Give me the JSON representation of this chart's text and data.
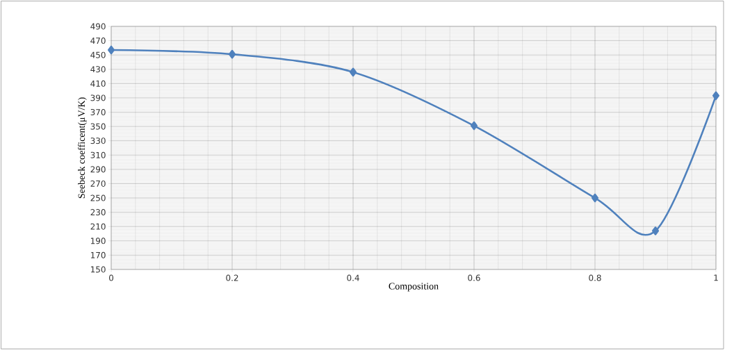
{
  "chart_data": {
    "type": "line",
    "xlabel": "Composition",
    "ylabel": "Seebeck coefficent(μV/K)",
    "x": [
      0,
      0.2,
      0.4,
      0.6,
      0.8,
      0.9,
      1
    ],
    "series": [
      {
        "color": "#4f81bd",
        "values": [
          457,
          451,
          426,
          351,
          250,
          204,
          393
        ]
      }
    ],
    "xlim": [
      0,
      1
    ],
    "xticks": [
      0,
      0.2,
      0.4,
      0.6,
      0.8,
      1
    ],
    "ylim": [
      150,
      490
    ],
    "yticks": [
      150,
      170,
      190,
      210,
      230,
      250,
      270,
      290,
      310,
      330,
      350,
      370,
      390,
      410,
      430,
      450,
      470,
      490
    ],
    "grid": true,
    "marker": "diamond",
    "line_style": "solid"
  }
}
